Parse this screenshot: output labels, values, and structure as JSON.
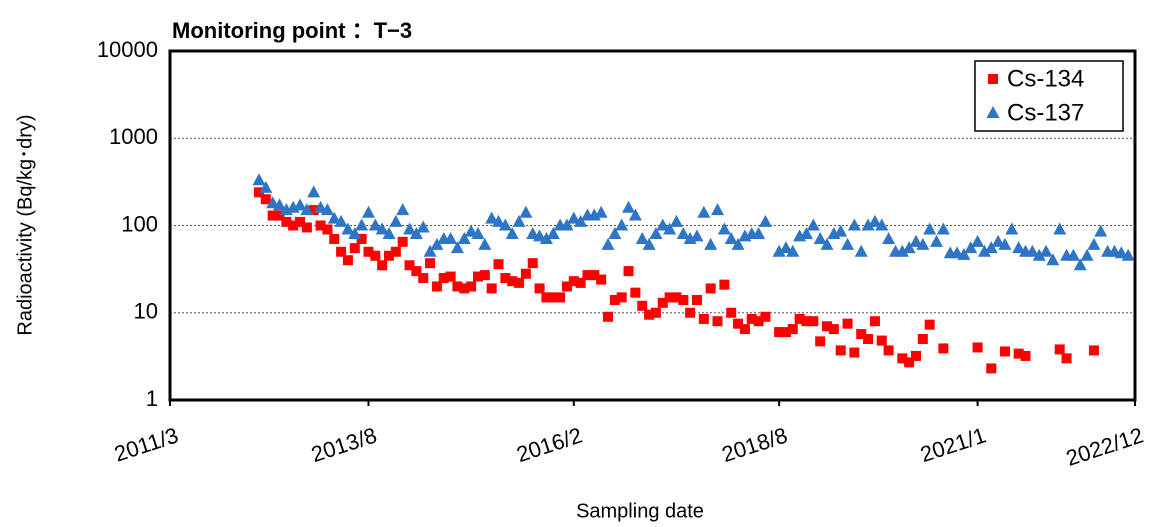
{
  "chart_data": {
    "type": "scatter",
    "title": "Monitoring point ：T−3",
    "y_label": "Radioactivity (Bq/kg･dry)",
    "x_label": "Sampling date",
    "xlim": [
      "2011/3",
      "2022/12"
    ],
    "xticks": [
      "2011/3",
      "2013/8",
      "2016/2",
      "2018/8",
      "2021/1",
      "2022/12"
    ],
    "ylim": [
      1,
      10000
    ],
    "yticks": [
      1,
      10,
      100,
      1000,
      10000
    ],
    "log_y": true,
    "grid": true,
    "legend": "upper right",
    "series": [
      {
        "name": "Cs-134",
        "color": "#ff0000",
        "marker": "square",
        "x": [
          "2012/4",
          "2012/5",
          "2012/6",
          "2012/7",
          "2012/8",
          "2012/9",
          "2012/10",
          "2012/11",
          "2012/12",
          "2013/1",
          "2013/2",
          "2013/3",
          "2013/4",
          "2013/5",
          "2013/6",
          "2013/7",
          "2013/8",
          "2013/9",
          "2013/10",
          "2013/11",
          "2013/12",
          "2014/1",
          "2014/2",
          "2014/3",
          "2014/4",
          "2014/5",
          "2014/6",
          "2014/7",
          "2014/8",
          "2014/9",
          "2014/10",
          "2014/11",
          "2014/12",
          "2015/1",
          "2015/2",
          "2015/3",
          "2015/4",
          "2015/5",
          "2015/6",
          "2015/7",
          "2015/8",
          "2015/9",
          "2015/10",
          "2015/11",
          "2015/12",
          "2016/1",
          "2016/2",
          "2016/3",
          "2016/4",
          "2016/5",
          "2016/6",
          "2016/7",
          "2016/8",
          "2016/9",
          "2016/10",
          "2016/11",
          "2016/12",
          "2017/1",
          "2017/2",
          "2017/3",
          "2017/4",
          "2017/5",
          "2017/6",
          "2017/7",
          "2017/8",
          "2017/9",
          "2017/10",
          "2017/11",
          "2017/12",
          "2018/1",
          "2018/2",
          "2018/3",
          "2018/4",
          "2018/5",
          "2018/6",
          "2018/8",
          "2018/9",
          "2018/10",
          "2018/11",
          "2018/12",
          "2019/1",
          "2019/2",
          "2019/3",
          "2019/4",
          "2019/5",
          "2019/6",
          "2019/7",
          "2019/8",
          "2019/9",
          "2019/10",
          "2019/11",
          "2019/12",
          "2020/2",
          "2020/3",
          "2020/4",
          "2020/5",
          "2020/6",
          "2020/8",
          "2021/1",
          "2021/3",
          "2021/5",
          "2021/7",
          "2021/8",
          "2022/1",
          "2022/2",
          "2022/6"
        ],
        "values": [
          240,
          200,
          130,
          130,
          110,
          100,
          110,
          95,
          150,
          100,
          90,
          70,
          50,
          40,
          55,
          70,
          50,
          45,
          35,
          45,
          50,
          65,
          35,
          30,
          25,
          37,
          20,
          25,
          26,
          20,
          19,
          20,
          26,
          27,
          19,
          36,
          25,
          23,
          22,
          28,
          37,
          19,
          15,
          15,
          15,
          20,
          23,
          22,
          27,
          27,
          24,
          9,
          14,
          15,
          30,
          17,
          12,
          9.5,
          10,
          13,
          15,
          15,
          14,
          10,
          14,
          8.5,
          19,
          8,
          21,
          10,
          7.5,
          6.5,
          8.5,
          8,
          9,
          6,
          6,
          6.5,
          8.5,
          8,
          8,
          4.7,
          7,
          6.5,
          3.7,
          7.5,
          3.5,
          5.7,
          5,
          8,
          4.8,
          3.7,
          3,
          2.7,
          3.2,
          5,
          7.3,
          3.9,
          4,
          2.3,
          3.6,
          3.4,
          3.2,
          3.8,
          3,
          3.7
        ]
      },
      {
        "name": "Cs-137",
        "color": "#2e75c6",
        "marker": "triangle",
        "x": [
          "2012/4",
          "2012/5",
          "2012/6",
          "2012/7",
          "2012/8",
          "2012/9",
          "2012/10",
          "2012/11",
          "2012/12",
          "2013/1",
          "2013/2",
          "2013/3",
          "2013/4",
          "2013/5",
          "2013/6",
          "2013/7",
          "2013/8",
          "2013/9",
          "2013/10",
          "2013/11",
          "2013/12",
          "2014/1",
          "2014/2",
          "2014/3",
          "2014/4",
          "2014/5",
          "2014/6",
          "2014/7",
          "2014/8",
          "2014/9",
          "2014/10",
          "2014/11",
          "2014/12",
          "2015/1",
          "2015/2",
          "2015/3",
          "2015/4",
          "2015/5",
          "2015/6",
          "2015/7",
          "2015/8",
          "2015/9",
          "2015/10",
          "2015/11",
          "2015/12",
          "2016/1",
          "2016/2",
          "2016/3",
          "2016/4",
          "2016/5",
          "2016/6",
          "2016/7",
          "2016/8",
          "2016/9",
          "2016/10",
          "2016/11",
          "2016/12",
          "2017/1",
          "2017/2",
          "2017/3",
          "2017/4",
          "2017/5",
          "2017/6",
          "2017/7",
          "2017/8",
          "2017/9",
          "2017/10",
          "2017/11",
          "2017/12",
          "2018/1",
          "2018/2",
          "2018/3",
          "2018/4",
          "2018/5",
          "2018/6",
          "2018/8",
          "2018/9",
          "2018/10",
          "2018/11",
          "2018/12",
          "2019/1",
          "2019/2",
          "2019/3",
          "2019/4",
          "2019/5",
          "2019/6",
          "2019/7",
          "2019/8",
          "2019/9",
          "2019/10",
          "2019/11",
          "2019/12",
          "2020/1",
          "2020/2",
          "2020/3",
          "2020/4",
          "2020/5",
          "2020/6",
          "2020/7",
          "2020/8",
          "2020/9",
          "2020/10",
          "2020/11",
          "2020/12",
          "2021/1",
          "2021/2",
          "2021/3",
          "2021/4",
          "2021/5",
          "2021/6",
          "2021/7",
          "2021/8",
          "2021/9",
          "2021/10",
          "2021/11",
          "2021/12",
          "2022/1",
          "2022/2",
          "2022/3",
          "2022/4",
          "2022/5",
          "2022/6",
          "2022/7",
          "2022/8",
          "2022/9",
          "2022/10",
          "2022/11"
        ],
        "values": [
          330,
          270,
          180,
          170,
          150,
          160,
          170,
          150,
          240,
          160,
          150,
          120,
          110,
          90,
          80,
          100,
          140,
          100,
          90,
          80,
          110,
          150,
          90,
          80,
          95,
          50,
          60,
          70,
          70,
          55,
          70,
          85,
          80,
          60,
          120,
          110,
          100,
          80,
          110,
          140,
          80,
          75,
          70,
          80,
          100,
          100,
          120,
          110,
          130,
          130,
          140,
          60,
          80,
          100,
          160,
          130,
          70,
          60,
          80,
          100,
          90,
          110,
          80,
          70,
          75,
          140,
          60,
          150,
          90,
          70,
          60,
          75,
          80,
          80,
          110,
          50,
          55,
          50,
          75,
          80,
          100,
          70,
          60,
          80,
          85,
          60,
          100,
          50,
          100,
          110,
          100,
          70,
          50,
          50,
          55,
          65,
          60,
          90,
          65,
          90,
          48,
          48,
          46,
          55,
          65,
          50,
          55,
          65,
          60,
          90,
          55,
          50,
          50,
          45,
          50,
          40,
          90,
          45,
          45,
          35,
          45,
          60,
          85,
          50,
          50,
          48,
          45
        ]
      }
    ]
  }
}
